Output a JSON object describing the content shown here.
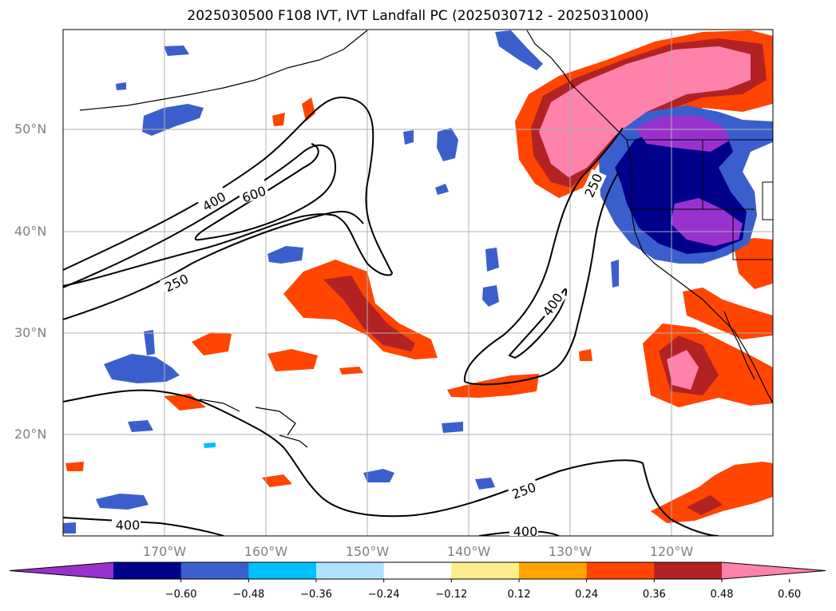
{
  "title": "2025030500 F108 IVT, IVT Landfall PC (2025030712 - 2025031000)",
  "map": {
    "lat_labels": [
      "50°N",
      "40°N",
      "30°N",
      "20°N"
    ],
    "lon_labels": [
      "170°W",
      "160°W",
      "150°W",
      "140°W",
      "130°W",
      "120°W"
    ],
    "contour_labels": [
      "400",
      "600",
      "250",
      "250",
      "400",
      "250",
      "400",
      "400"
    ]
  },
  "colorbar": {
    "colors": [
      "#9932cc",
      "#00008b",
      "#3a5fcd",
      "#00bfff",
      "#b0e2ff",
      "#ffffff",
      "#ffec8b",
      "#ffa500",
      "#ff4500",
      "#b22222",
      "#ff82ab"
    ],
    "tick_labels": [
      "−0.60",
      "−0.48",
      "−0.36",
      "−0.24",
      "−0.12",
      "0.12",
      "0.24",
      "0.36",
      "0.48",
      "0.60"
    ]
  }
}
